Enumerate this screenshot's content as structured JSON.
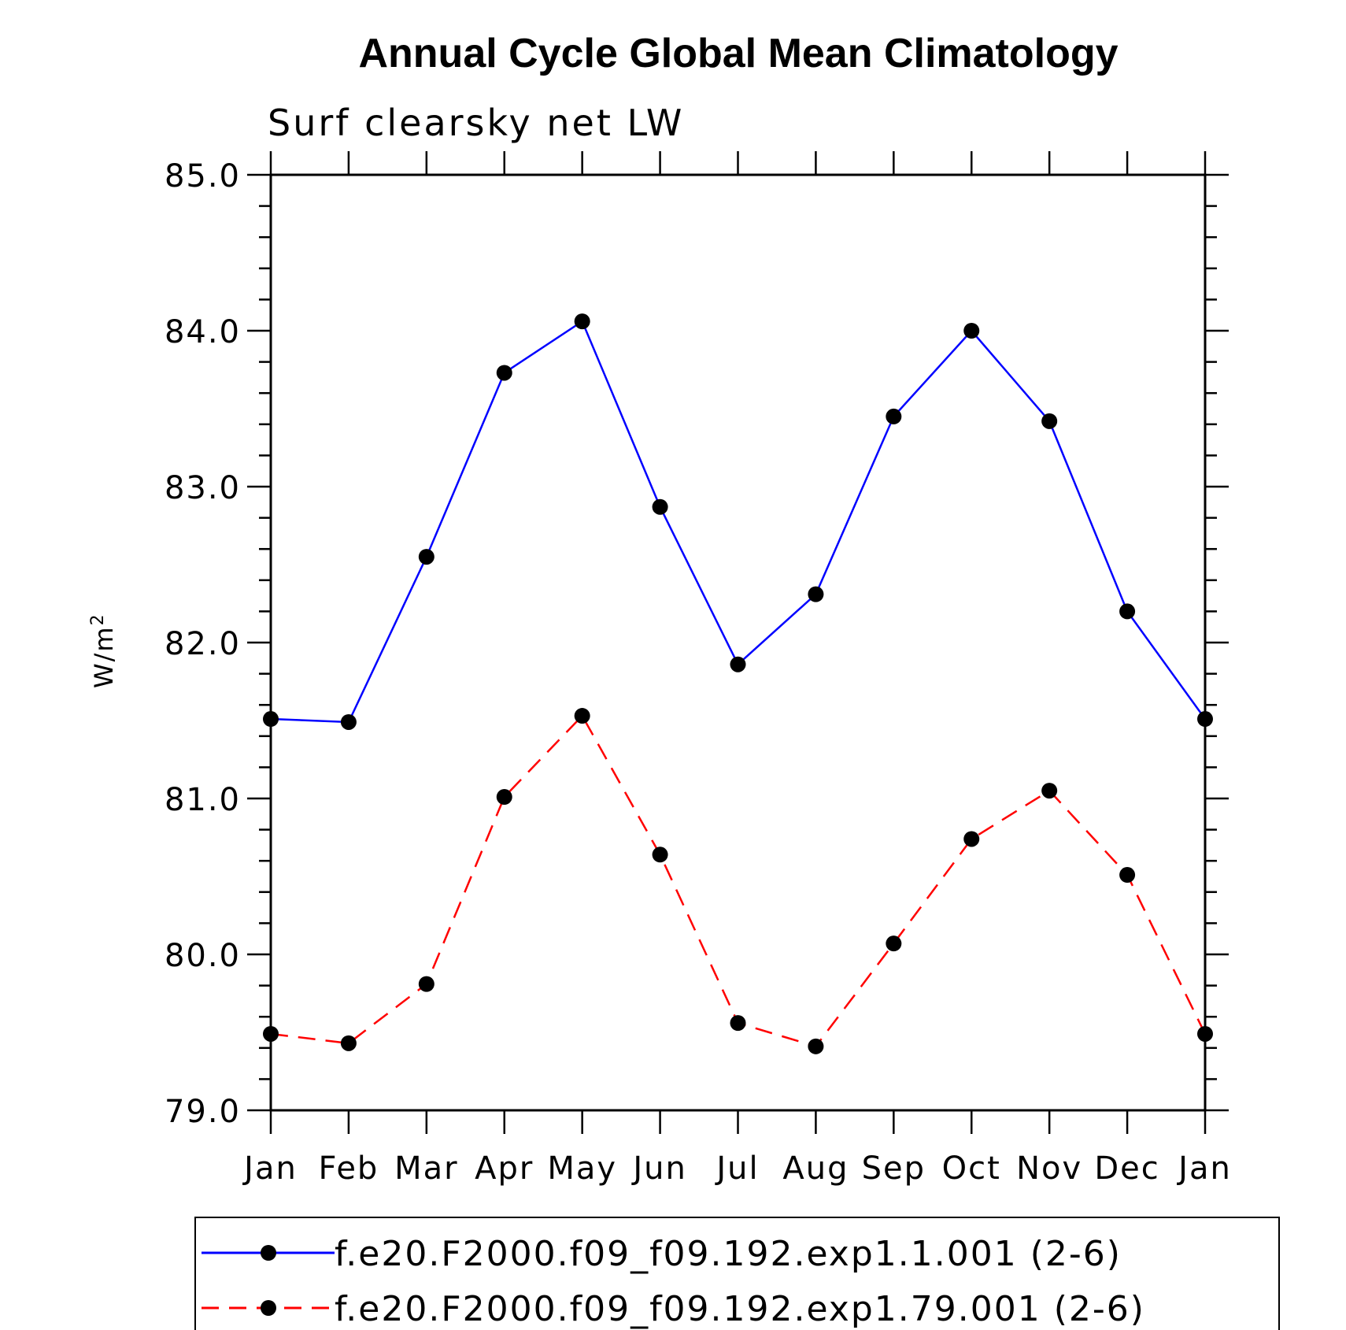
{
  "chart_data": {
    "type": "line",
    "title": "Annual Cycle Global Mean Climatology",
    "subtitle": "Surf clearsky net LW",
    "ylabel": "W/m",
    "ylabel_superscript": "2",
    "xlabel": "",
    "ylim": [
      79.0,
      85.0
    ],
    "yticks": [
      "79.0",
      "80.0",
      "81.0",
      "82.0",
      "83.0",
      "84.0",
      "85.0"
    ],
    "categories": [
      "Jan",
      "Feb",
      "Mar",
      "Apr",
      "May",
      "Jun",
      "Jul",
      "Aug",
      "Sep",
      "Oct",
      "Nov",
      "Dec",
      "Jan"
    ],
    "series": [
      {
        "name": "f.e20.F2000.f09_f09.192.exp1.1.001 (2-6)",
        "color": "#0000ff",
        "style": "solid",
        "values": [
          81.51,
          81.49,
          82.55,
          83.73,
          84.06,
          82.87,
          81.86,
          82.31,
          83.45,
          84.0,
          83.42,
          82.2,
          81.51
        ]
      },
      {
        "name": "f.e20.F2000.f09_f09.192.exp1.79.001 (2-6)",
        "color": "#ff0000",
        "style": "dashed",
        "values": [
          79.49,
          79.43,
          79.81,
          81.01,
          81.53,
          80.64,
          79.56,
          79.41,
          80.07,
          80.74,
          81.05,
          80.51,
          79.49
        ]
      }
    ],
    "legend_position": "bottom"
  }
}
